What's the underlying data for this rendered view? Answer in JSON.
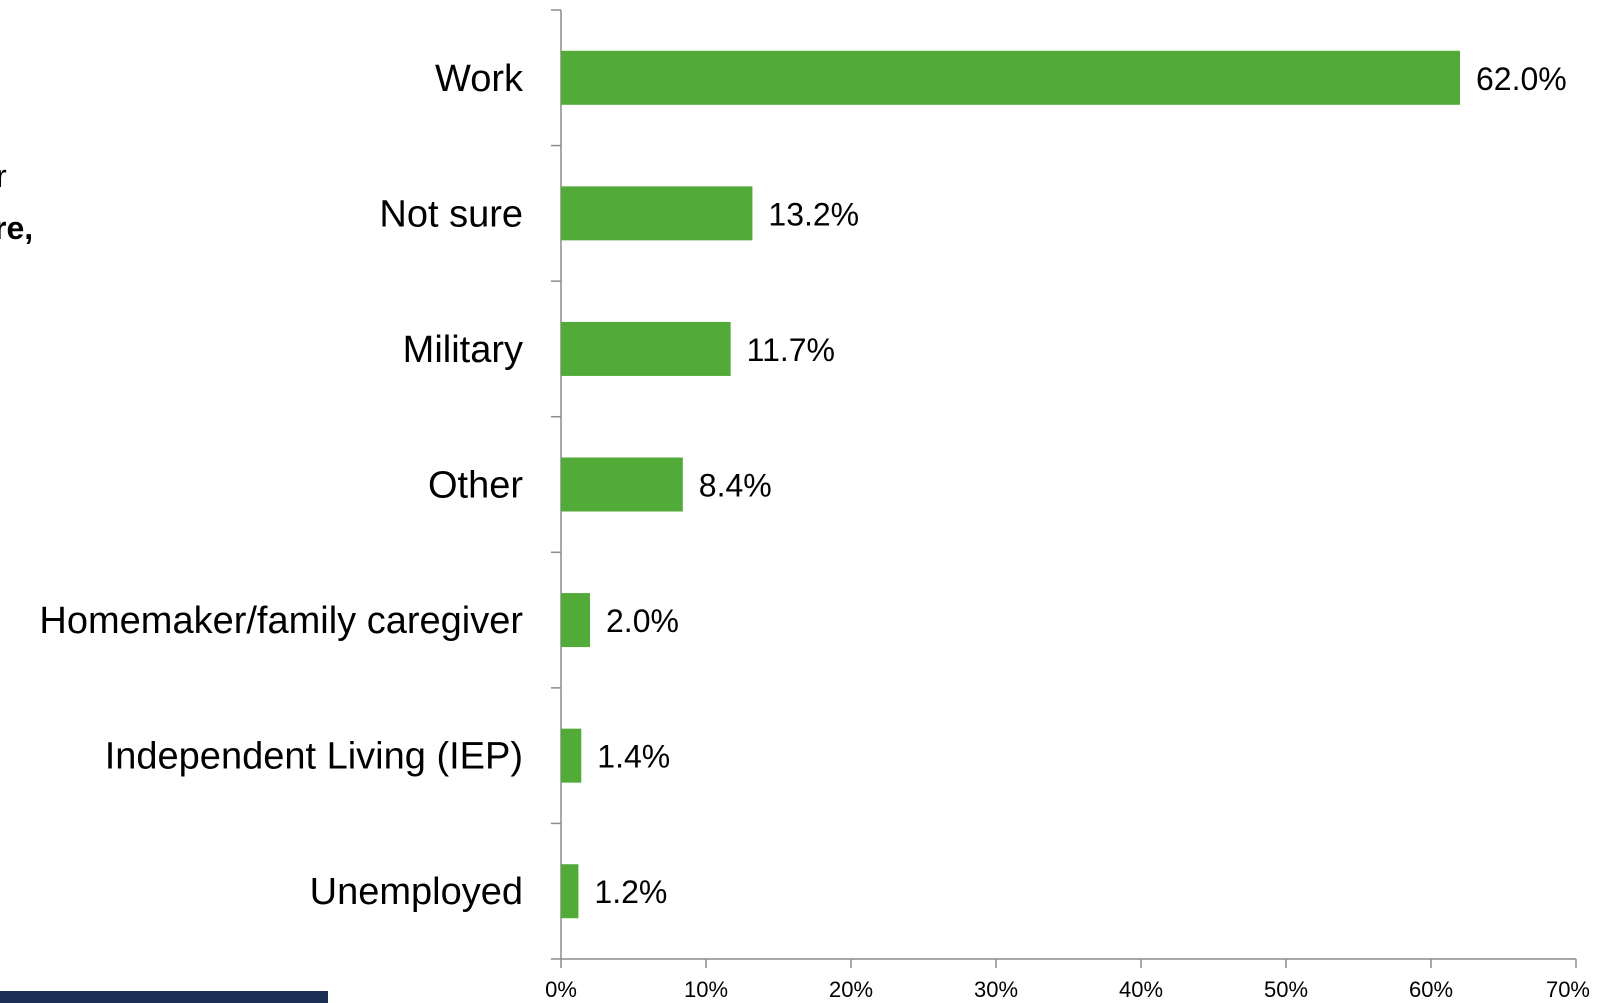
{
  "side_text": {
    "line1": "r",
    "line2": "re,"
  },
  "colors": {
    "bar": "#52AA38",
    "axis": "#8c8c8c",
    "footer_bar": "#1b2f55"
  },
  "chart_data": {
    "type": "bar",
    "orientation": "horizontal",
    "categories": [
      "Work",
      "Not sure",
      "Military",
      "Other",
      "Homemaker/family caregiver",
      "Independent Living (IEP)",
      "Unemployed"
    ],
    "values": [
      62.0,
      13.2,
      11.7,
      8.4,
      2.0,
      1.4,
      1.2
    ],
    "value_labels": [
      "62.0%",
      "13.2%",
      "11.7%",
      "8.4%",
      "2.0%",
      "1.4%",
      "1.2%"
    ],
    "xlim": [
      0,
      70
    ],
    "x_ticks": [
      0,
      10,
      20,
      30,
      40,
      50,
      60,
      70
    ],
    "x_tick_labels": [
      "0%",
      "10%",
      "20%",
      "30%",
      "40%",
      "50%",
      "60%",
      "70%"
    ],
    "grid": false,
    "legend": "none"
  }
}
